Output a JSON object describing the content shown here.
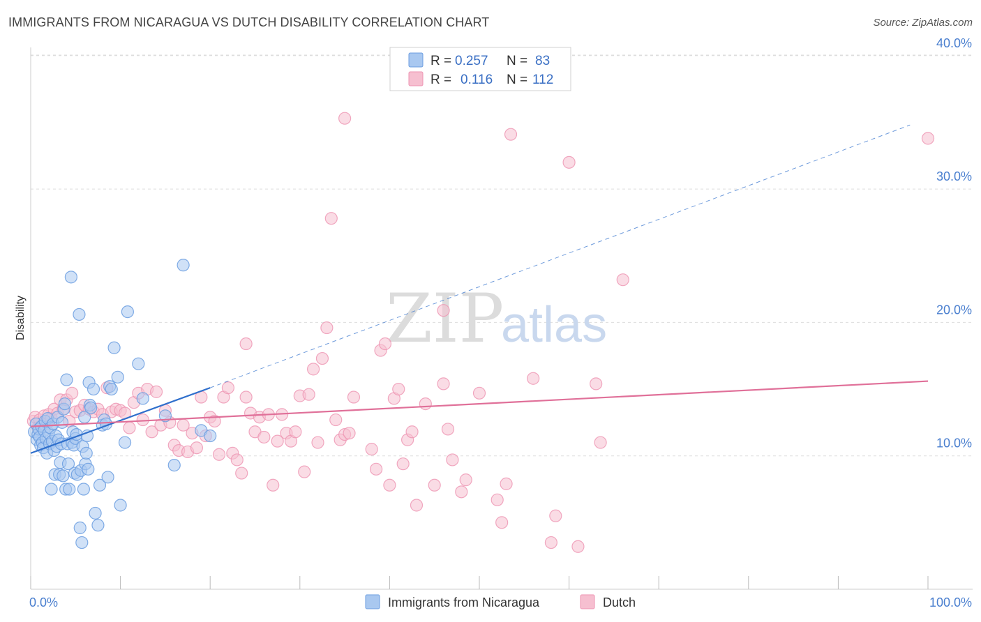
{
  "header": {
    "title": "IMMIGRANTS FROM NICARAGUA VS DUTCH DISABILITY CORRELATION CHART",
    "source": "Source: ZipAtlas.com"
  },
  "watermark": {
    "zip": "ZIP",
    "atlas": "atlas"
  },
  "colors": {
    "blue_fill": "#a9c8f0",
    "blue_stroke": "#6b9de0",
    "blue_line": "#2f6fcc",
    "pink_fill": "#f6bfd0",
    "pink_stroke": "#ee93b2",
    "pink_line": "#e07099",
    "tick_text": "#4a7fcf",
    "grid": "#dddddd"
  },
  "legend": {
    "rows": [
      {
        "r_label": "R =",
        "r_value": "0.257",
        "n_label": "N =",
        "n_value": "83",
        "color": "#a9c8f0"
      },
      {
        "r_label": "R =",
        "r_value": "0.116",
        "n_label": "N =",
        "n_value": "112",
        "color": "#f6bfd0"
      }
    ]
  },
  "chart_data": {
    "type": "scatter",
    "title": "IMMIGRANTS FROM NICARAGUA VS DUTCH DISABILITY CORRELATION CHART",
    "xlabel": "",
    "ylabel": "Disability",
    "xlim": [
      0,
      100
    ],
    "ylim": [
      0,
      42
    ],
    "x_tick_labels": [
      "0.0%",
      "100.0%"
    ],
    "y_ticks": [
      10,
      20,
      30,
      40
    ],
    "y_tick_labels": [
      "10.0%",
      "20.0%",
      "30.0%",
      "40.0%"
    ],
    "grid": true,
    "legend_position": "bottom",
    "series": [
      {
        "name": "Immigrants from Nicaragua",
        "color": "#a9c8f0",
        "trend": {
          "x": [
            0,
            20
          ],
          "y": [
            10.2,
            15.1
          ],
          "extended_x": [
            20,
            98
          ],
          "extended_y": [
            15.1,
            34.8
          ]
        },
        "points": [
          [
            0.4,
            11.8
          ],
          [
            0.6,
            12.4
          ],
          [
            0.7,
            11.2
          ],
          [
            0.8,
            11.6
          ],
          [
            0.9,
            12.0
          ],
          [
            1.0,
            11.4
          ],
          [
            1.1,
            10.8
          ],
          [
            1.2,
            12.2
          ],
          [
            1.3,
            11.0
          ],
          [
            1.4,
            10.6
          ],
          [
            1.5,
            11.9
          ],
          [
            1.6,
            12.6
          ],
          [
            1.7,
            11.3
          ],
          [
            1.8,
            10.2
          ],
          [
            1.9,
            12.8
          ],
          [
            2.0,
            11.7
          ],
          [
            2.1,
            10.9
          ],
          [
            2.2,
            12.1
          ],
          [
            2.3,
            7.5
          ],
          [
            2.4,
            11.1
          ],
          [
            2.5,
            12.4
          ],
          [
            2.6,
            10.4
          ],
          [
            2.7,
            8.6
          ],
          [
            2.8,
            11.5
          ],
          [
            2.9,
            10.7
          ],
          [
            3.0,
            12.9
          ],
          [
            3.1,
            11.2
          ],
          [
            3.2,
            8.6
          ],
          [
            3.3,
            9.5
          ],
          [
            3.4,
            10.9
          ],
          [
            3.5,
            12.5
          ],
          [
            3.6,
            8.5
          ],
          [
            3.7,
            13.5
          ],
          [
            3.8,
            13.9
          ],
          [
            3.9,
            7.5
          ],
          [
            4.0,
            15.7
          ],
          [
            4.1,
            10.9
          ],
          [
            4.2,
            9.4
          ],
          [
            4.3,
            7.5
          ],
          [
            4.5,
            23.4
          ],
          [
            4.6,
            11.0
          ],
          [
            4.7,
            11.8
          ],
          [
            4.8,
            10.8
          ],
          [
            4.9,
            8.7
          ],
          [
            5.0,
            11.3
          ],
          [
            5.1,
            11.6
          ],
          [
            5.2,
            8.6
          ],
          [
            5.4,
            20.6
          ],
          [
            5.5,
            4.6
          ],
          [
            5.6,
            8.9
          ],
          [
            5.7,
            3.5
          ],
          [
            5.8,
            10.7
          ],
          [
            5.9,
            7.5
          ],
          [
            6.0,
            12.9
          ],
          [
            6.1,
            9.4
          ],
          [
            6.2,
            10.2
          ],
          [
            6.3,
            11.5
          ],
          [
            6.4,
            9.0
          ],
          [
            6.5,
            15.5
          ],
          [
            6.6,
            13.8
          ],
          [
            6.7,
            13.6
          ],
          [
            7.0,
            15.0
          ],
          [
            7.2,
            5.7
          ],
          [
            7.5,
            4.8
          ],
          [
            7.7,
            7.8
          ],
          [
            8.0,
            12.3
          ],
          [
            8.2,
            12.7
          ],
          [
            8.4,
            12.4
          ],
          [
            8.6,
            8.4
          ],
          [
            8.8,
            15.2
          ],
          [
            9.0,
            15.0
          ],
          [
            9.3,
            18.1
          ],
          [
            9.7,
            15.9
          ],
          [
            10.0,
            6.3
          ],
          [
            10.5,
            11.0
          ],
          [
            10.8,
            20.8
          ],
          [
            12.0,
            16.9
          ],
          [
            12.5,
            14.3
          ],
          [
            15.0,
            13.0
          ],
          [
            16.0,
            9.3
          ],
          [
            17.0,
            24.3
          ],
          [
            19.0,
            11.9
          ],
          [
            20.0,
            11.5
          ]
        ]
      },
      {
        "name": "Dutch",
        "color": "#f6bfd0",
        "trend": {
          "x": [
            0,
            100
          ],
          "y": [
            12.2,
            15.6
          ]
        },
        "points": [
          [
            0.3,
            12.6
          ],
          [
            0.5,
            12.9
          ],
          [
            0.8,
            12.1
          ],
          [
            1.0,
            12.7
          ],
          [
            1.5,
            13.0
          ],
          [
            1.8,
            12.4
          ],
          [
            2.0,
            13.1
          ],
          [
            2.3,
            12.8
          ],
          [
            2.6,
            13.5
          ],
          [
            3.0,
            13.2
          ],
          [
            3.3,
            14.2
          ],
          [
            3.6,
            13.5
          ],
          [
            4.0,
            14.2
          ],
          [
            4.3,
            12.6
          ],
          [
            4.6,
            14.7
          ],
          [
            5.0,
            13.3
          ],
          [
            5.5,
            13.4
          ],
          [
            6.0,
            13.8
          ],
          [
            6.5,
            13.5
          ],
          [
            7.0,
            13.3
          ],
          [
            7.5,
            13.5
          ],
          [
            8.0,
            13.1
          ],
          [
            8.5,
            15.1
          ],
          [
            9.0,
            13.3
          ],
          [
            9.5,
            13.5
          ],
          [
            10.0,
            13.4
          ],
          [
            10.5,
            13.2
          ],
          [
            11.0,
            12.1
          ],
          [
            11.5,
            14.0
          ],
          [
            12.0,
            14.7
          ],
          [
            12.5,
            12.7
          ],
          [
            13.0,
            15.0
          ],
          [
            13.5,
            11.8
          ],
          [
            14.0,
            14.8
          ],
          [
            14.5,
            12.3
          ],
          [
            15.0,
            13.4
          ],
          [
            15.5,
            12.5
          ],
          [
            16.0,
            10.8
          ],
          [
            16.5,
            10.4
          ],
          [
            17.0,
            12.3
          ],
          [
            17.5,
            10.3
          ],
          [
            18.0,
            11.7
          ],
          [
            18.5,
            10.6
          ],
          [
            19.0,
            14.4
          ],
          [
            19.5,
            11.5
          ],
          [
            20.0,
            12.9
          ],
          [
            20.5,
            12.6
          ],
          [
            21.0,
            10.1
          ],
          [
            21.5,
            14.4
          ],
          [
            22.0,
            15.1
          ],
          [
            22.5,
            10.2
          ],
          [
            23.0,
            9.7
          ],
          [
            23.5,
            8.7
          ],
          [
            24.0,
            14.4
          ],
          [
            24.5,
            13.2
          ],
          [
            25.0,
            11.8
          ],
          [
            25.5,
            12.9
          ],
          [
            26.0,
            11.4
          ],
          [
            26.5,
            13.1
          ],
          [
            27.0,
            7.8
          ],
          [
            27.5,
            11.1
          ],
          [
            28.0,
            13.1
          ],
          [
            28.5,
            11.7
          ],
          [
            29.0,
            11.1
          ],
          [
            29.5,
            11.8
          ],
          [
            30.0,
            14.5
          ],
          [
            30.5,
            8.8
          ],
          [
            31.0,
            14.6
          ],
          [
            31.5,
            16.5
          ],
          [
            32.0,
            11.0
          ],
          [
            32.5,
            17.3
          ],
          [
            33.0,
            19.6
          ],
          [
            33.5,
            27.8
          ],
          [
            34.0,
            12.7
          ],
          [
            34.5,
            11.2
          ],
          [
            35.0,
            11.6
          ],
          [
            35.5,
            11.7
          ],
          [
            36.0,
            14.4
          ],
          [
            24.0,
            18.4
          ],
          [
            38.0,
            10.5
          ],
          [
            38.5,
            9.0
          ],
          [
            39.0,
            17.9
          ],
          [
            39.5,
            18.4
          ],
          [
            40.0,
            7.8
          ],
          [
            40.5,
            14.3
          ],
          [
            41.0,
            15.0
          ],
          [
            41.5,
            9.4
          ],
          [
            42.0,
            11.2
          ],
          [
            42.5,
            11.8
          ],
          [
            43.0,
            6.3
          ],
          [
            44.0,
            13.9
          ],
          [
            45.0,
            7.8
          ],
          [
            46.0,
            15.4
          ],
          [
            46.5,
            12.0
          ],
          [
            47.0,
            9.7
          ],
          [
            48.0,
            7.3
          ],
          [
            48.5,
            8.2
          ],
          [
            50.0,
            14.7
          ],
          [
            52.0,
            6.7
          ],
          [
            52.5,
            5.0
          ],
          [
            53.0,
            7.9
          ],
          [
            53.5,
            34.1
          ],
          [
            56.0,
            15.8
          ],
          [
            58.0,
            3.5
          ],
          [
            58.5,
            5.5
          ],
          [
            60.0,
            32.0
          ],
          [
            61.0,
            3.2
          ],
          [
            63.0,
            15.4
          ],
          [
            63.5,
            11.0
          ],
          [
            66.0,
            23.2
          ],
          [
            35.0,
            35.3
          ],
          [
            46.0,
            20.9
          ],
          [
            100.0,
            33.8
          ]
        ]
      }
    ]
  },
  "bottom_legend": [
    {
      "label": "Immigrants from Nicaragua",
      "color": "#a9c8f0"
    },
    {
      "label": "Dutch",
      "color": "#f6bfd0"
    }
  ]
}
